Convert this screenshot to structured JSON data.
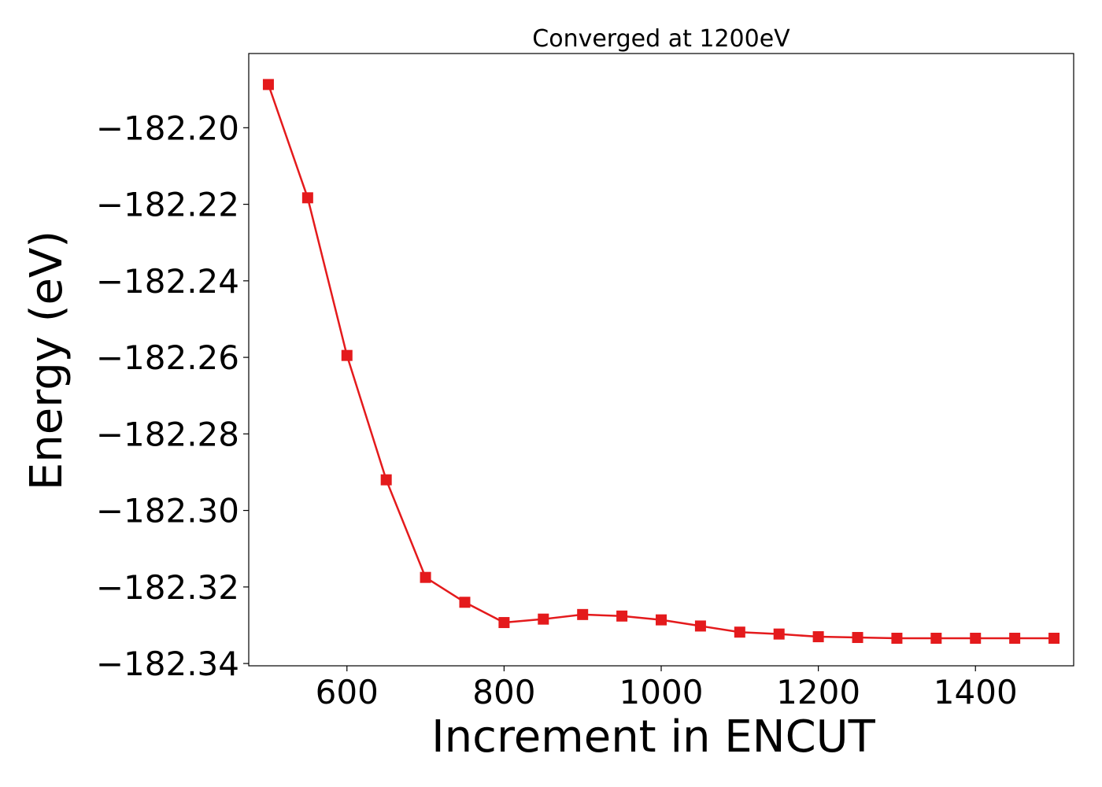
{
  "chart_data": {
    "type": "line",
    "title": "Converged at 1200eV",
    "xlabel": "Increment in ENCUT",
    "ylabel": "Energy (eV)",
    "xlim": [
      475,
      1525
    ],
    "ylim": [
      -182.3406,
      -182.1806
    ],
    "x_ticks": [
      {
        "value": 600,
        "label": "600"
      },
      {
        "value": 800,
        "label": "800"
      },
      {
        "value": 1000,
        "label": "1000"
      },
      {
        "value": 1200,
        "label": "1200"
      },
      {
        "value": 1400,
        "label": "1400"
      }
    ],
    "y_ticks": [
      {
        "value": -182.2,
        "label": "−182.20"
      },
      {
        "value": -182.22,
        "label": "−182.22"
      },
      {
        "value": -182.24,
        "label": "−182.24"
      },
      {
        "value": -182.26,
        "label": "−182.26"
      },
      {
        "value": -182.28,
        "label": "−182.28"
      },
      {
        "value": -182.3,
        "label": "−182.30"
      },
      {
        "value": -182.32,
        "label": "−182.32"
      },
      {
        "value": -182.34,
        "label": "−182.34"
      }
    ],
    "grid": false,
    "legend": "none",
    "series": [
      {
        "color": "#e41a1c",
        "marker": "square",
        "x": [
          500,
          550,
          600,
          650,
          700,
          750,
          800,
          850,
          900,
          950,
          1000,
          1050,
          1100,
          1150,
          1200,
          1250,
          1300,
          1350,
          1400,
          1450,
          1500
        ],
        "y": [
          -182.1887,
          -182.2183,
          -182.2595,
          -182.292,
          -182.3175,
          -182.324,
          -182.3293,
          -182.3284,
          -182.3272,
          -182.3276,
          -182.3286,
          -182.3302,
          -182.3318,
          -182.3323,
          -182.333,
          -182.3332,
          -182.3334,
          -182.3334,
          -182.3334,
          -182.3334,
          -182.3334
        ]
      }
    ]
  }
}
